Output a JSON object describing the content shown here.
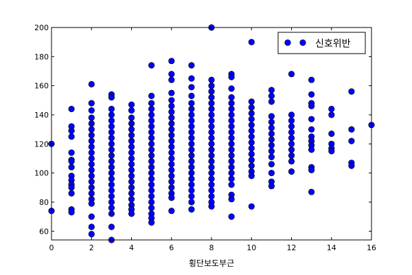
{
  "chart_data": {
    "type": "scatter",
    "xlabel": "횡단보도부근",
    "ylabel": "",
    "title": "",
    "xlim": [
      0,
      16
    ],
    "ylim": [
      54,
      200
    ],
    "grid": false,
    "legend_position": "top-right",
    "x_ticks": [
      "0",
      "2",
      "4",
      "6",
      "8",
      "10",
      "12",
      "14",
      "16"
    ],
    "y_ticks": [
      "60",
      "80",
      "100",
      "120",
      "140",
      "160",
      "180",
      "200"
    ],
    "series": [
      {
        "name": "신호위반",
        "color": "#0000ff",
        "points": [
          [
            0,
            120
          ],
          [
            0,
            74
          ],
          [
            1,
            144
          ],
          [
            1,
            132
          ],
          [
            1,
            129
          ],
          [
            1,
            125
          ],
          [
            1,
            114
          ],
          [
            1,
            109
          ],
          [
            1,
            108
          ],
          [
            1,
            104
          ],
          [
            1,
            98
          ],
          [
            1,
            95
          ],
          [
            1,
            92
          ],
          [
            1,
            90
          ],
          [
            1,
            86
          ],
          [
            1,
            75
          ],
          [
            1,
            73
          ],
          [
            2,
            161
          ],
          [
            2,
            148
          ],
          [
            2,
            143
          ],
          [
            2,
            138
          ],
          [
            2,
            134
          ],
          [
            2,
            130
          ],
          [
            2,
            126
          ],
          [
            2,
            122
          ],
          [
            2,
            118
          ],
          [
            2,
            114
          ],
          [
            2,
            110
          ],
          [
            2,
            106
          ],
          [
            2,
            102
          ],
          [
            2,
            98
          ],
          [
            2,
            94
          ],
          [
            2,
            90
          ],
          [
            2,
            86
          ],
          [
            2,
            82
          ],
          [
            2,
            79
          ],
          [
            2,
            70
          ],
          [
            2,
            63
          ],
          [
            2,
            58
          ],
          [
            3,
            154
          ],
          [
            3,
            152
          ],
          [
            3,
            144
          ],
          [
            3,
            140
          ],
          [
            3,
            136
          ],
          [
            3,
            132
          ],
          [
            3,
            128
          ],
          [
            3,
            124
          ],
          [
            3,
            120
          ],
          [
            3,
            116
          ],
          [
            3,
            112
          ],
          [
            3,
            108
          ],
          [
            3,
            104
          ],
          [
            3,
            100
          ],
          [
            3,
            96
          ],
          [
            3,
            92
          ],
          [
            3,
            88
          ],
          [
            3,
            84
          ],
          [
            3,
            80
          ],
          [
            3,
            76
          ],
          [
            3,
            72
          ],
          [
            3,
            63
          ],
          [
            3,
            54
          ],
          [
            4,
            147
          ],
          [
            4,
            143
          ],
          [
            4,
            138
          ],
          [
            4,
            134
          ],
          [
            4,
            130
          ],
          [
            4,
            126
          ],
          [
            4,
            122
          ],
          [
            4,
            118
          ],
          [
            4,
            114
          ],
          [
            4,
            110
          ],
          [
            4,
            106
          ],
          [
            4,
            102
          ],
          [
            4,
            98
          ],
          [
            4,
            94
          ],
          [
            4,
            90
          ],
          [
            4,
            86
          ],
          [
            4,
            82
          ],
          [
            4,
            78
          ],
          [
            4,
            75
          ],
          [
            4,
            72
          ],
          [
            5,
            174
          ],
          [
            5,
            153
          ],
          [
            5,
            148
          ],
          [
            5,
            144
          ],
          [
            5,
            140
          ],
          [
            5,
            136
          ],
          [
            5,
            132
          ],
          [
            5,
            128
          ],
          [
            5,
            124
          ],
          [
            5,
            120
          ],
          [
            5,
            116
          ],
          [
            5,
            112
          ],
          [
            5,
            108
          ],
          [
            5,
            104
          ],
          [
            5,
            100
          ],
          [
            5,
            96
          ],
          [
            5,
            92
          ],
          [
            5,
            88
          ],
          [
            5,
            84
          ],
          [
            5,
            80
          ],
          [
            5,
            76
          ],
          [
            5,
            72
          ],
          [
            5,
            69
          ],
          [
            5,
            66
          ],
          [
            6,
            177
          ],
          [
            6,
            168
          ],
          [
            6,
            164
          ],
          [
            6,
            155
          ],
          [
            6,
            150
          ],
          [
            6,
            146
          ],
          [
            6,
            142
          ],
          [
            6,
            138
          ],
          [
            6,
            134
          ],
          [
            6,
            130
          ],
          [
            6,
            126
          ],
          [
            6,
            122
          ],
          [
            6,
            118
          ],
          [
            6,
            114
          ],
          [
            6,
            110
          ],
          [
            6,
            106
          ],
          [
            6,
            102
          ],
          [
            6,
            98
          ],
          [
            6,
            94
          ],
          [
            6,
            90
          ],
          [
            6,
            86
          ],
          [
            6,
            83
          ],
          [
            6,
            74
          ],
          [
            7,
            174
          ],
          [
            7,
            165
          ],
          [
            7,
            159
          ],
          [
            7,
            153
          ],
          [
            7,
            148
          ],
          [
            7,
            144
          ],
          [
            7,
            140
          ],
          [
            7,
            136
          ],
          [
            7,
            132
          ],
          [
            7,
            128
          ],
          [
            7,
            124
          ],
          [
            7,
            120
          ],
          [
            7,
            116
          ],
          [
            7,
            112
          ],
          [
            7,
            108
          ],
          [
            7,
            104
          ],
          [
            7,
            100
          ],
          [
            7,
            96
          ],
          [
            7,
            92
          ],
          [
            7,
            88
          ],
          [
            7,
            84
          ],
          [
            7,
            80
          ],
          [
            7,
            75
          ],
          [
            8,
            200
          ],
          [
            8,
            164
          ],
          [
            8,
            160
          ],
          [
            8,
            156
          ],
          [
            8,
            152
          ],
          [
            8,
            148
          ],
          [
            8,
            144
          ],
          [
            8,
            140
          ],
          [
            8,
            136
          ],
          [
            8,
            132
          ],
          [
            8,
            128
          ],
          [
            8,
            124
          ],
          [
            8,
            120
          ],
          [
            8,
            116
          ],
          [
            8,
            112
          ],
          [
            8,
            108
          ],
          [
            8,
            104
          ],
          [
            8,
            100
          ],
          [
            8,
            96
          ],
          [
            8,
            92
          ],
          [
            8,
            88
          ],
          [
            8,
            84
          ],
          [
            8,
            80
          ],
          [
            8,
            77
          ],
          [
            9,
            168
          ],
          [
            9,
            166
          ],
          [
            9,
            158
          ],
          [
            9,
            152
          ],
          [
            9,
            148
          ],
          [
            9,
            144
          ],
          [
            9,
            140
          ],
          [
            9,
            136
          ],
          [
            9,
            132
          ],
          [
            9,
            128
          ],
          [
            9,
            124
          ],
          [
            9,
            120
          ],
          [
            9,
            116
          ],
          [
            9,
            112
          ],
          [
            9,
            108
          ],
          [
            9,
            104
          ],
          [
            9,
            100
          ],
          [
            9,
            96
          ],
          [
            9,
            92
          ],
          [
            9,
            85
          ],
          [
            9,
            82
          ],
          [
            9,
            70
          ],
          [
            10,
            190
          ],
          [
            10,
            149
          ],
          [
            10,
            145
          ],
          [
            10,
            141
          ],
          [
            10,
            137
          ],
          [
            10,
            133
          ],
          [
            10,
            129
          ],
          [
            10,
            125
          ],
          [
            10,
            121
          ],
          [
            10,
            117
          ],
          [
            10,
            113
          ],
          [
            10,
            109
          ],
          [
            10,
            105
          ],
          [
            10,
            101
          ],
          [
            10,
            98
          ],
          [
            10,
            77
          ],
          [
            11,
            157
          ],
          [
            11,
            153
          ],
          [
            11,
            149
          ],
          [
            11,
            139
          ],
          [
            11,
            135
          ],
          [
            11,
            131
          ],
          [
            11,
            127
          ],
          [
            11,
            123
          ],
          [
            11,
            119
          ],
          [
            11,
            115
          ],
          [
            11,
            111
          ],
          [
            11,
            106
          ],
          [
            11,
            100
          ],
          [
            11,
            94
          ],
          [
            11,
            91
          ],
          [
            12,
            168
          ],
          [
            12,
            140
          ],
          [
            12,
            136
          ],
          [
            12,
            132
          ],
          [
            12,
            128
          ],
          [
            12,
            124
          ],
          [
            12,
            120
          ],
          [
            12,
            116
          ],
          [
            12,
            112
          ],
          [
            12,
            108
          ],
          [
            12,
            101
          ],
          [
            13,
            164
          ],
          [
            13,
            154
          ],
          [
            13,
            148
          ],
          [
            13,
            146
          ],
          [
            13,
            137
          ],
          [
            13,
            130
          ],
          [
            13,
            125
          ],
          [
            13,
            122
          ],
          [
            13,
            119
          ],
          [
            13,
            116
          ],
          [
            13,
            104
          ],
          [
            13,
            102
          ],
          [
            13,
            87
          ],
          [
            14,
            144
          ],
          [
            14,
            140
          ],
          [
            14,
            127
          ],
          [
            14,
            120
          ],
          [
            14,
            117
          ],
          [
            14,
            115
          ],
          [
            15,
            156
          ],
          [
            15,
            130
          ],
          [
            15,
            122
          ],
          [
            15,
            107
          ],
          [
            15,
            105
          ],
          [
            16,
            133
          ]
        ]
      }
    ]
  }
}
